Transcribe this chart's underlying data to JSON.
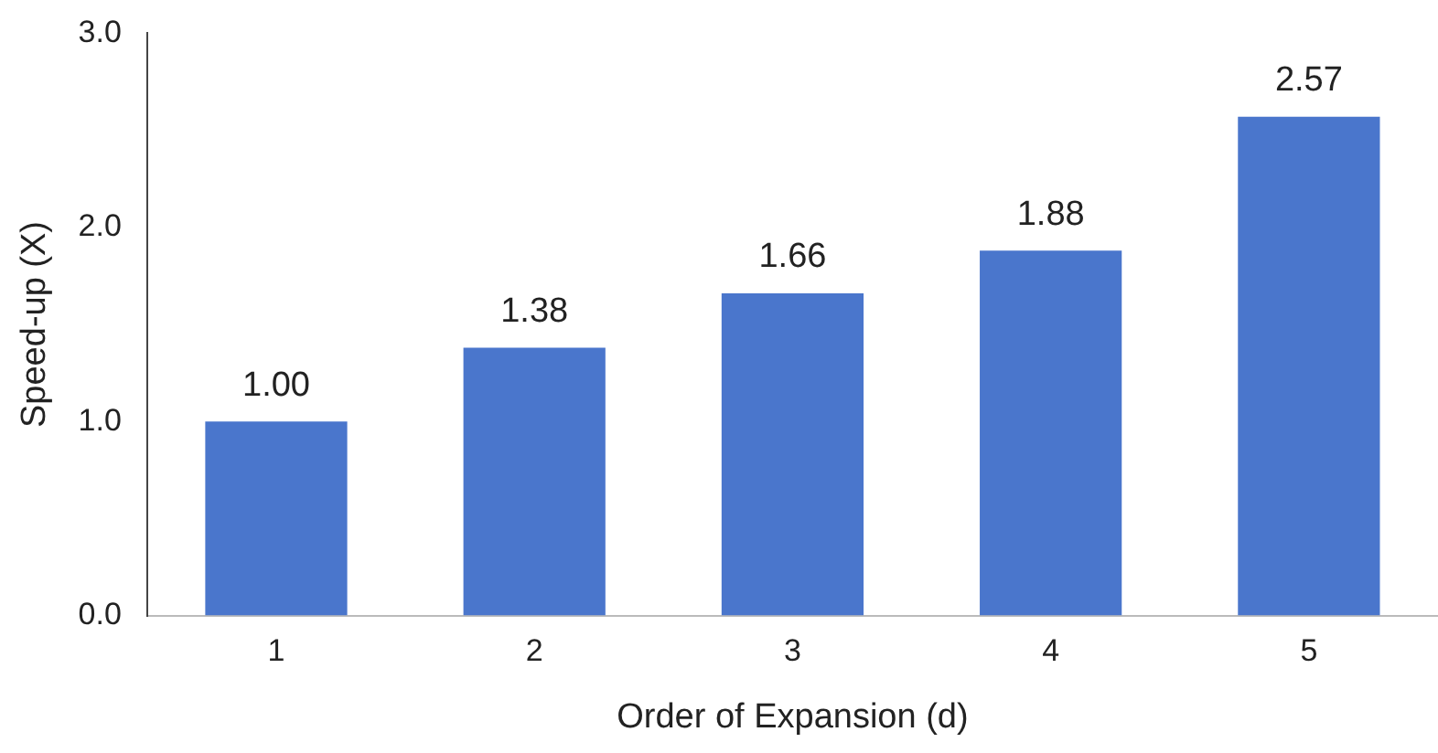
{
  "chart_data": {
    "type": "bar",
    "xlabel": "Order of Expansion (d)",
    "ylabel": "Speed-up (X)",
    "categories": [
      "1",
      "2",
      "3",
      "4",
      "5"
    ],
    "values": [
      1.0,
      1.38,
      1.66,
      1.88,
      2.57
    ],
    "value_labels": [
      "1.00",
      "1.38",
      "1.66",
      "1.88",
      "2.57"
    ],
    "color": "#4a76cc",
    "ylim": [
      0,
      3
    ],
    "yticks": [
      {
        "value": 0,
        "label": "0.0"
      },
      {
        "value": 1,
        "label": "1.0"
      },
      {
        "value": 2,
        "label": "2.0"
      },
      {
        "value": 3,
        "label": "3.0"
      }
    ],
    "grid": false,
    "legend": false
  }
}
